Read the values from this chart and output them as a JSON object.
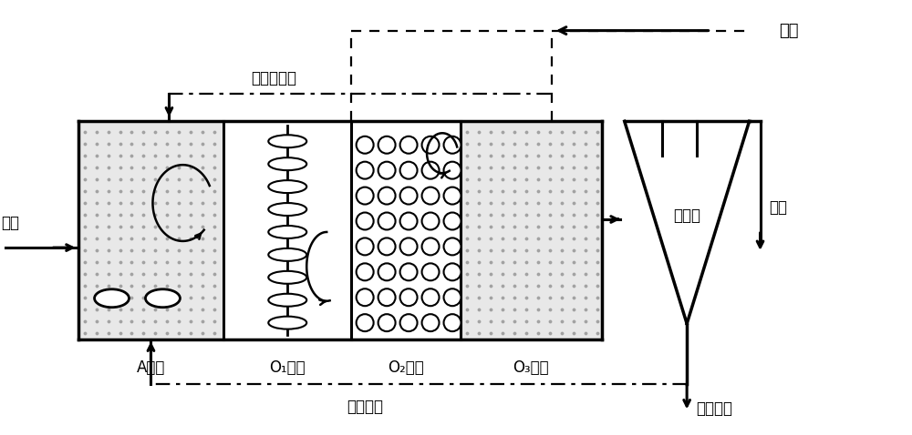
{
  "bg_color": "#ffffff",
  "line_color": "#000000",
  "fill_gray": "#cccccc",
  "dot_color": "#999999",
  "labels": {
    "jinshui": "进水",
    "hunhe": "混合液回流",
    "kongqi": "空气",
    "wuran": "污泥回流",
    "A": "A单元",
    "O1": "O₁单元",
    "O2": "O₂单元",
    "O3": "O₃单元",
    "erchichi": "二沉池",
    "chushui": "出水",
    "shengyu": "剩余污泥"
  },
  "font_size": 12,
  "lw_main": 2.2,
  "lw_thin": 1.6
}
